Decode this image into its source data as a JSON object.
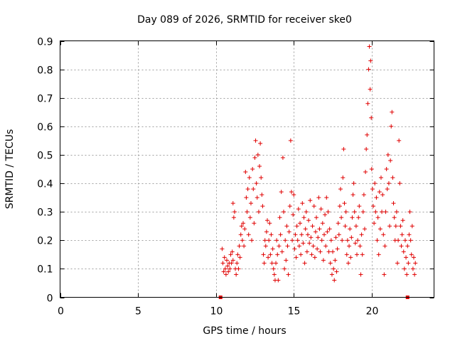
{
  "chart_data": {
    "type": "scatter",
    "title": "Day 089 of 2026, SRMTID for receiver ske0",
    "xlabel": "GPS time / hours",
    "ylabel": "SRMTID / TECUs",
    "xlim": [
      0,
      24
    ],
    "ylim": [
      0,
      0.9
    ],
    "xticks": [
      0,
      5,
      10,
      15,
      20
    ],
    "yticks": [
      0,
      0.1,
      0.2,
      0.3,
      0.4,
      0.5,
      0.6,
      0.7,
      0.8,
      0.9
    ],
    "xtick_labels": [
      "0",
      "5",
      "10",
      "15",
      "20"
    ],
    "ytick_labels": [
      "0",
      "0.1",
      "0.2",
      "0.3",
      "0.4",
      "0.5",
      "0.6",
      "0.7",
      "0.8",
      "0.9"
    ],
    "grid": true,
    "marker": "+",
    "color": "#e00000",
    "series": [
      {
        "name": "SRMTID",
        "points": [
          [
            10.3,
            0.0
          ],
          [
            22.3,
            0.0
          ],
          [
            10.4,
            0.17
          ],
          [
            10.45,
            0.12
          ],
          [
            10.5,
            0.09
          ],
          [
            10.55,
            0.14
          ],
          [
            10.6,
            0.1
          ],
          [
            10.65,
            0.08
          ],
          [
            10.7,
            0.13
          ],
          [
            10.75,
            0.11
          ],
          [
            10.8,
            0.09
          ],
          [
            10.85,
            0.12
          ],
          [
            10.9,
            0.1
          ],
          [
            10.95,
            0.15
          ],
          [
            11.0,
            0.12
          ],
          [
            11.05,
            0.16
          ],
          [
            11.1,
            0.13
          ],
          [
            11.1,
            0.33
          ],
          [
            11.15,
            0.28
          ],
          [
            11.2,
            0.3
          ],
          [
            11.25,
            0.1
          ],
          [
            11.3,
            0.08
          ],
          [
            11.35,
            0.12
          ],
          [
            11.4,
            0.15
          ],
          [
            11.45,
            0.1
          ],
          [
            11.5,
            0.18
          ],
          [
            11.55,
            0.14
          ],
          [
            11.6,
            0.22
          ],
          [
            11.65,
            0.25
          ],
          [
            11.7,
            0.2
          ],
          [
            11.75,
            0.26
          ],
          [
            11.8,
            0.18
          ],
          [
            11.85,
            0.24
          ],
          [
            11.9,
            0.44
          ],
          [
            11.95,
            0.35
          ],
          [
            12.0,
            0.3
          ],
          [
            12.05,
            0.38
          ],
          [
            12.1,
            0.22
          ],
          [
            12.15,
            0.42
          ],
          [
            12.2,
            0.28
          ],
          [
            12.25,
            0.33
          ],
          [
            12.3,
            0.2
          ],
          [
            12.35,
            0.45
          ],
          [
            12.4,
            0.38
          ],
          [
            12.45,
            0.26
          ],
          [
            12.5,
            0.49
          ],
          [
            12.55,
            0.55
          ],
          [
            12.6,
            0.4
          ],
          [
            12.65,
            0.35
          ],
          [
            12.7,
            0.5
          ],
          [
            12.75,
            0.3
          ],
          [
            12.8,
            0.46
          ],
          [
            12.85,
            0.54
          ],
          [
            12.9,
            0.42
          ],
          [
            12.95,
            0.36
          ],
          [
            13.0,
            0.32
          ],
          [
            13.05,
            0.15
          ],
          [
            13.1,
            0.12
          ],
          [
            13.15,
            0.2
          ],
          [
            13.2,
            0.18
          ],
          [
            13.25,
            0.23
          ],
          [
            13.3,
            0.27
          ],
          [
            13.35,
            0.14
          ],
          [
            13.4,
            0.2
          ],
          [
            13.45,
            0.26
          ],
          [
            13.5,
            0.15
          ],
          [
            13.55,
            0.22
          ],
          [
            13.6,
            0.12
          ],
          [
            13.65,
            0.17
          ],
          [
            13.7,
            0.1
          ],
          [
            13.75,
            0.08
          ],
          [
            13.8,
            0.06
          ],
          [
            13.85,
            0.12
          ],
          [
            13.9,
            0.2
          ],
          [
            13.95,
            0.15
          ],
          [
            14.0,
            0.06
          ],
          [
            14.05,
            0.18
          ],
          [
            14.1,
            0.28
          ],
          [
            14.15,
            0.22
          ],
          [
            14.2,
            0.37
          ],
          [
            14.25,
            0.16
          ],
          [
            14.3,
            0.49
          ],
          [
            14.35,
            0.3
          ],
          [
            14.4,
            0.1
          ],
          [
            14.45,
            0.2
          ],
          [
            14.5,
            0.13
          ],
          [
            14.55,
            0.25
          ],
          [
            14.6,
            0.18
          ],
          [
            14.65,
            0.08
          ],
          [
            14.7,
            0.23
          ],
          [
            14.75,
            0.32
          ],
          [
            14.8,
            0.55
          ],
          [
            14.85,
            0.37
          ],
          [
            14.9,
            0.2
          ],
          [
            14.95,
            0.29
          ],
          [
            15.0,
            0.36
          ],
          [
            15.05,
            0.17
          ],
          [
            15.1,
            0.22
          ],
          [
            15.15,
            0.14
          ],
          [
            15.2,
            0.25
          ],
          [
            15.25,
            0.2
          ],
          [
            15.3,
            0.31
          ],
          [
            15.35,
            0.18
          ],
          [
            15.4,
            0.26
          ],
          [
            15.45,
            0.15
          ],
          [
            15.5,
            0.22
          ],
          [
            15.55,
            0.33
          ],
          [
            15.6,
            0.19
          ],
          [
            15.65,
            0.28
          ],
          [
            15.7,
            0.12
          ],
          [
            15.75,
            0.24
          ],
          [
            15.8,
            0.3
          ],
          [
            15.85,
            0.16
          ],
          [
            15.9,
            0.22
          ],
          [
            15.95,
            0.27
          ],
          [
            16.0,
            0.19
          ],
          [
            16.05,
            0.34
          ],
          [
            16.1,
            0.21
          ],
          [
            16.15,
            0.15
          ],
          [
            16.2,
            0.25
          ],
          [
            16.25,
            0.18
          ],
          [
            16.3,
            0.32
          ],
          [
            16.35,
            0.14
          ],
          [
            16.4,
            0.23
          ],
          [
            16.45,
            0.28
          ],
          [
            16.5,
            0.17
          ],
          [
            16.55,
            0.21
          ],
          [
            16.6,
            0.35
          ],
          [
            16.65,
            0.24
          ],
          [
            16.7,
            0.16
          ],
          [
            16.75,
            0.31
          ],
          [
            16.8,
            0.2
          ],
          [
            16.85,
            0.26
          ],
          [
            16.9,
            0.13
          ],
          [
            16.95,
            0.22
          ],
          [
            17.0,
            0.29
          ],
          [
            17.05,
            0.18
          ],
          [
            17.1,
            0.35
          ],
          [
            17.15,
            0.23
          ],
          [
            17.2,
            0.3
          ],
          [
            17.25,
            0.16
          ],
          [
            17.3,
            0.24
          ],
          [
            17.35,
            0.12
          ],
          [
            17.4,
            0.2
          ],
          [
            17.45,
            0.08
          ],
          [
            17.5,
            0.16
          ],
          [
            17.55,
            0.1
          ],
          [
            17.6,
            0.06
          ],
          [
            17.65,
            0.13
          ],
          [
            17.7,
            0.21
          ],
          [
            17.75,
            0.09
          ],
          [
            17.8,
            0.17
          ],
          [
            17.85,
            0.26
          ],
          [
            17.9,
            0.22
          ],
          [
            17.95,
            0.32
          ],
          [
            18.0,
            0.38
          ],
          [
            18.05,
            0.28
          ],
          [
            18.1,
            0.2
          ],
          [
            18.15,
            0.42
          ],
          [
            18.2,
            0.52
          ],
          [
            18.25,
            0.33
          ],
          [
            18.3,
            0.25
          ],
          [
            18.35,
            0.3
          ],
          [
            18.4,
            0.15
          ],
          [
            18.45,
            0.2
          ],
          [
            18.5,
            0.12
          ],
          [
            18.55,
            0.18
          ],
          [
            18.6,
            0.24
          ],
          [
            18.65,
            0.14
          ],
          [
            18.7,
            0.21
          ],
          [
            18.75,
            0.28
          ],
          [
            18.8,
            0.36
          ],
          [
            18.85,
            0.4
          ],
          [
            18.9,
            0.3
          ],
          [
            18.95,
            0.19
          ],
          [
            19.0,
            0.25
          ],
          [
            19.05,
            0.15
          ],
          [
            19.1,
            0.2
          ],
          [
            19.15,
            0.28
          ],
          [
            19.2,
            0.32
          ],
          [
            19.25,
            0.18
          ],
          [
            19.3,
            0.08
          ],
          [
            19.35,
            0.22
          ],
          [
            19.4,
            0.15
          ],
          [
            19.45,
            0.3
          ],
          [
            19.5,
            0.36
          ],
          [
            19.55,
            0.24
          ],
          [
            19.6,
            0.44
          ],
          [
            19.65,
            0.52
          ],
          [
            19.7,
            0.57
          ],
          [
            19.75,
            0.68
          ],
          [
            19.8,
            0.8
          ],
          [
            19.85,
            0.88
          ],
          [
            19.9,
            0.73
          ],
          [
            19.93,
            0.83
          ],
          [
            19.97,
            0.63
          ],
          [
            20.0,
            0.45
          ],
          [
            20.05,
            0.38
          ],
          [
            20.1,
            0.32
          ],
          [
            20.15,
            0.26
          ],
          [
            20.2,
            0.4
          ],
          [
            20.25,
            0.3
          ],
          [
            20.3,
            0.35
          ],
          [
            20.35,
            0.2
          ],
          [
            20.4,
            0.28
          ],
          [
            20.45,
            0.15
          ],
          [
            20.5,
            0.37
          ],
          [
            20.55,
            0.24
          ],
          [
            20.6,
            0.42
          ],
          [
            20.65,
            0.3
          ],
          [
            20.7,
            0.36
          ],
          [
            20.75,
            0.22
          ],
          [
            20.8,
            0.08
          ],
          [
            20.85,
            0.18
          ],
          [
            20.9,
            0.3
          ],
          [
            20.95,
            0.45
          ],
          [
            21.0,
            0.38
          ],
          [
            21.05,
            0.5
          ],
          [
            21.1,
            0.4
          ],
          [
            21.15,
            0.25
          ],
          [
            21.2,
            0.48
          ],
          [
            21.25,
            0.6
          ],
          [
            21.3,
            0.65
          ],
          [
            21.35,
            0.42
          ],
          [
            21.4,
            0.33
          ],
          [
            21.45,
            0.28
          ],
          [
            21.5,
            0.2
          ],
          [
            21.55,
            0.25
          ],
          [
            21.6,
            0.3
          ],
          [
            21.65,
            0.12
          ],
          [
            21.7,
            0.2
          ],
          [
            21.75,
            0.55
          ],
          [
            21.8,
            0.4
          ],
          [
            21.85,
            0.25
          ],
          [
            21.9,
            0.18
          ],
          [
            21.95,
            0.22
          ],
          [
            22.0,
            0.27
          ],
          [
            22.05,
            0.16
          ],
          [
            22.1,
            0.1
          ],
          [
            22.15,
            0.2
          ],
          [
            22.2,
            0.14
          ],
          [
            22.25,
            0.08
          ],
          [
            22.3,
            0.18
          ],
          [
            22.35,
            0.12
          ],
          [
            22.4,
            0.22
          ],
          [
            22.45,
            0.3
          ],
          [
            22.5,
            0.2
          ],
          [
            22.55,
            0.15
          ],
          [
            22.6,
            0.25
          ],
          [
            22.65,
            0.1
          ],
          [
            22.7,
            0.14
          ],
          [
            22.75,
            0.08
          ],
          [
            22.8,
            0.12
          ]
        ]
      }
    ]
  }
}
